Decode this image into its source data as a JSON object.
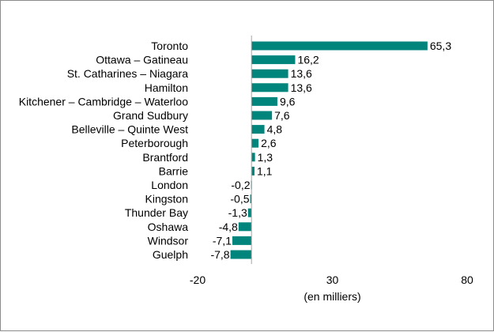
{
  "chart_data": {
    "type": "bar",
    "orientation": "horizontal",
    "categories": [
      "Toronto",
      "Ottawa – Gatineau",
      "St. Catharines – Niagara",
      "Hamilton",
      "Kitchener – Cambridge – Waterloo",
      "Grand Sudbury",
      "Belleville  – Quinte West",
      "Peterborough",
      "Brantford",
      "Barrie",
      "London",
      "Kingston",
      "Thunder Bay",
      "Oshawa",
      "Windsor",
      "Guelph"
    ],
    "values": [
      65.3,
      16.2,
      13.6,
      13.6,
      9.6,
      7.6,
      4.8,
      2.6,
      1.3,
      1.1,
      -0.2,
      -0.5,
      -1.3,
      -4.8,
      -7.1,
      -7.8
    ],
    "value_labels": [
      "65,3",
      "16,2",
      "13,6",
      "13,6",
      "9,6",
      "7,6",
      "4,8",
      "2,6",
      "1,3",
      "1,1",
      "-0,2",
      "-0,5",
      "-1,3",
      "-4,8",
      "-7,1",
      "-7,8"
    ],
    "xlim": [
      -20,
      80
    ],
    "x_ticks": [
      -20,
      30,
      80
    ],
    "x_tick_labels": [
      "-20",
      "30",
      "80"
    ],
    "xlabel": "(en milliers)",
    "title": "",
    "grid": false,
    "bar_color": "#00857c"
  }
}
